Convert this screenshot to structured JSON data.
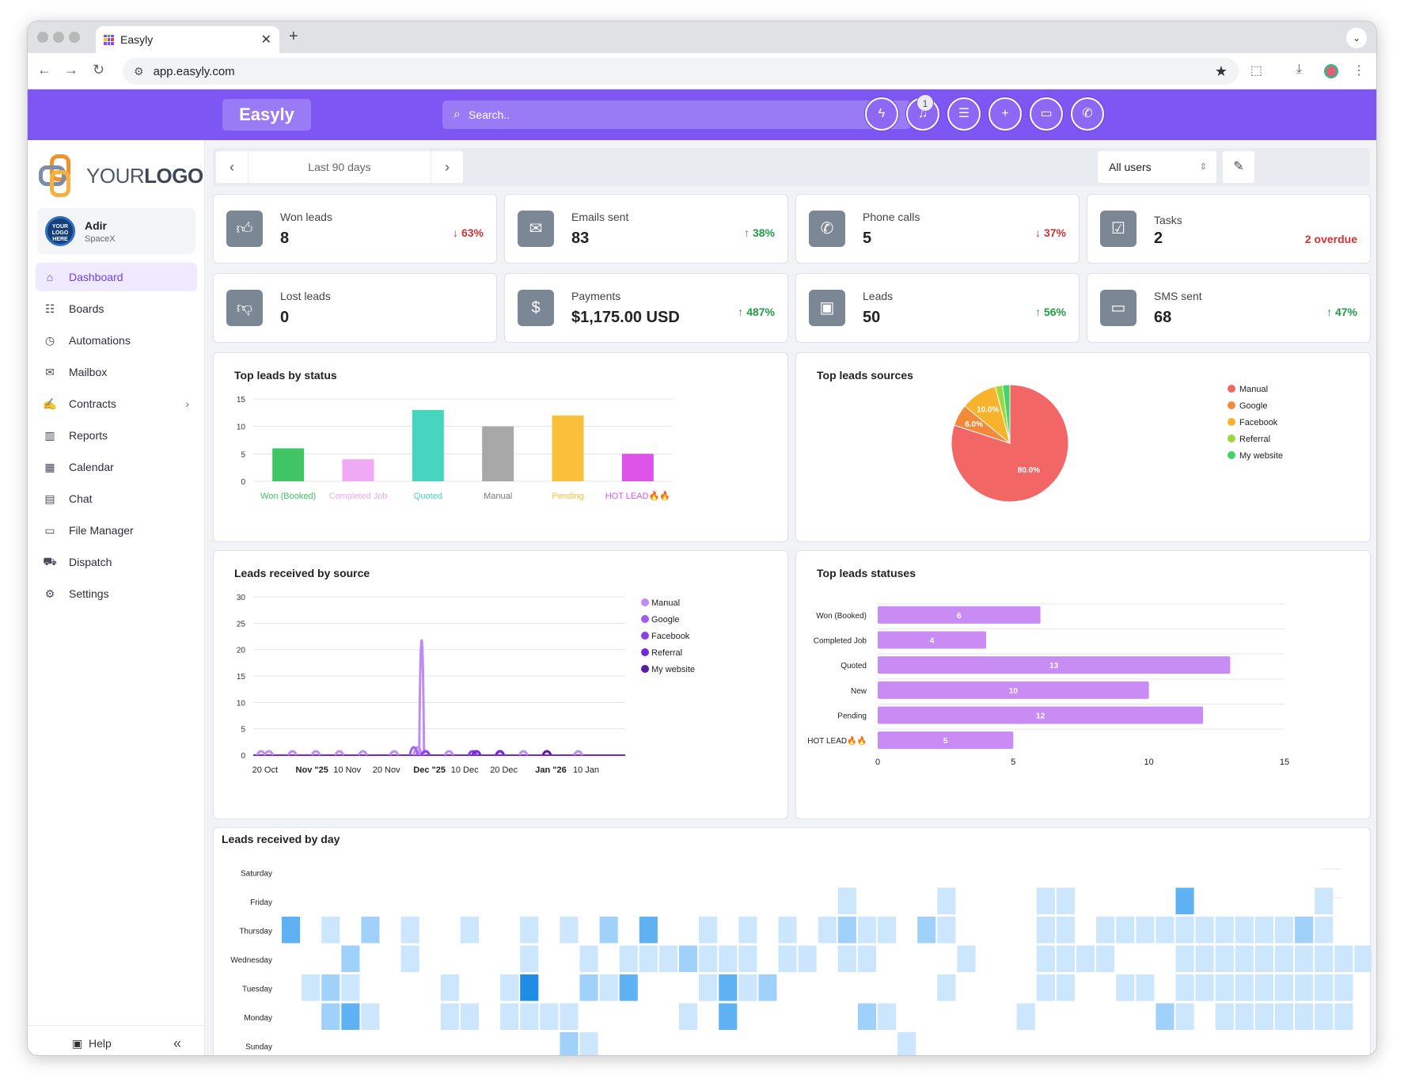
{
  "browser": {
    "tab_title": "Easyly",
    "url": "app.easyly.com"
  },
  "header": {
    "brand": "Easyly",
    "search_placeholder": "Search..",
    "notification_count": "1",
    "buttons": [
      "lightning-icon",
      "bell-icon",
      "list-icon",
      "plus-icon",
      "chat-icon",
      "phone-icon"
    ]
  },
  "sidebar": {
    "logo_text_light": "YOUR",
    "logo_text_bold": "LOGO",
    "user": {
      "name": "Adir",
      "org": "SpaceX",
      "avatar_text": "YOUR LOGO HERE"
    },
    "items": [
      {
        "label": "Dashboard",
        "icon": "home-icon",
        "active": true
      },
      {
        "label": "Boards",
        "icon": "boards-icon"
      },
      {
        "label": "Automations",
        "icon": "clock-icon"
      },
      {
        "label": "Mailbox",
        "icon": "mail-icon"
      },
      {
        "label": "Contracts",
        "icon": "signature-icon",
        "has_arrow": true
      },
      {
        "label": "Reports",
        "icon": "chart-icon"
      },
      {
        "label": "Calendar",
        "icon": "calendar-icon"
      },
      {
        "label": "Chat",
        "icon": "chat-icon"
      },
      {
        "label": "File Manager",
        "icon": "folder-icon"
      },
      {
        "label": "Dispatch",
        "icon": "truck-icon"
      },
      {
        "label": "Settings",
        "icon": "gear-icon"
      }
    ],
    "help": "Help"
  },
  "toolbar": {
    "range_label": "Last 90 days",
    "users_select": "All users"
  },
  "kpis": [
    {
      "label": "Won leads",
      "value": "8",
      "delta": "63%",
      "dir": "down",
      "icon": "thumbs-up-icon"
    },
    {
      "label": "Emails sent",
      "value": "83",
      "delta": "38%",
      "dir": "up",
      "icon": "envelope-icon"
    },
    {
      "label": "Phone calls",
      "value": "5",
      "delta": "37%",
      "dir": "down",
      "icon": "phone-icon"
    },
    {
      "label": "Tasks",
      "value": "2",
      "delta": "2 overdue",
      "dir": "overdue",
      "icon": "clipboard-icon"
    },
    {
      "label": "Lost leads",
      "value": "0",
      "delta": "",
      "dir": "none",
      "icon": "thumbs-down-icon"
    },
    {
      "label": "Payments",
      "value": "$1,175.00 USD",
      "delta": "487%",
      "dir": "up",
      "icon": "dollar-icon"
    },
    {
      "label": "Leads",
      "value": "50",
      "delta": "56%",
      "dir": "up",
      "icon": "contact-card-icon"
    },
    {
      "label": "SMS sent",
      "value": "68",
      "delta": "47%",
      "dir": "up",
      "icon": "sms-icon"
    }
  ],
  "chart_data": [
    {
      "type": "bar",
      "title": "Top leads by status",
      "categories": [
        "Won (Booked)",
        "Completed Job",
        "Quoted",
        "Manual",
        "Pending",
        "HOT LEAD🔥🔥"
      ],
      "values": [
        6,
        4,
        13,
        10,
        12,
        5
      ],
      "colors": [
        "#41c463",
        "#f0aaf3",
        "#48d5bf",
        "#a8a8a8",
        "#fbbf3a",
        "#dd53ea"
      ],
      "yticks": [
        0,
        5,
        10,
        15
      ],
      "ylim": [
        0,
        15
      ],
      "grid": true
    },
    {
      "type": "pie",
      "title": "Top leads sources",
      "labels": [
        "Manual",
        "Google",
        "Facebook",
        "Referral",
        "My website"
      ],
      "values": [
        80.0,
        6.0,
        10.0,
        2.0,
        2.0
      ],
      "slice_labels": [
        "80.0%",
        "6.0%",
        "10.0%",
        "",
        ""
      ],
      "colors": [
        "#f36666",
        "#f5893a",
        "#f7b32b",
        "#9ad93c",
        "#42d46a"
      ],
      "legend": "right"
    },
    {
      "type": "line",
      "title": "Leads received by source",
      "x_ticks": [
        "20 Oct",
        "Nov \"25",
        "10 Nov",
        "20 Nov",
        "Dec \"25",
        "10 Dec",
        "20 Dec",
        "Jan \"26",
        "10 Jan"
      ],
      "x_ticks_bold": [
        false,
        true,
        false,
        false,
        true,
        false,
        false,
        true,
        false
      ],
      "x_range": [
        "2025-10-17",
        "2026-01-20"
      ],
      "yticks": [
        0,
        5,
        10,
        15,
        20,
        25,
        30
      ],
      "ylim": [
        0,
        30
      ],
      "grid": true,
      "legend": "right",
      "series": [
        {
          "name": "Manual",
          "color": "#c08bf3",
          "x": [
            "2025-10-19",
            "2025-10-21",
            "2025-10-27",
            "2025-11-02",
            "2025-11-08",
            "2025-11-14",
            "2025-11-22",
            "2025-11-28",
            "2025-11-29",
            "2025-11-30",
            "2025-12-06",
            "2025-12-13",
            "2025-12-19",
            "2025-12-25",
            "2025-12-31",
            "2026-01-08"
          ],
          "y": [
            1,
            1,
            1,
            1,
            1,
            1,
            1,
            2,
            29,
            1,
            1,
            1,
            1,
            1,
            1,
            1
          ]
        },
        {
          "name": "Google",
          "color": "#a45cf0",
          "x": [
            "2025-11-27",
            "2025-11-30"
          ],
          "y": [
            2,
            1
          ]
        },
        {
          "name": "Facebook",
          "color": "#8b40e8",
          "x": [
            "2025-11-30",
            "2025-12-12",
            "2025-12-19"
          ],
          "y": [
            1,
            1,
            1
          ]
        },
        {
          "name": "Referral",
          "color": "#7228d6",
          "x": [
            "2025-12-13",
            "2025-12-19"
          ],
          "y": [
            1,
            1
          ]
        },
        {
          "name": "My website",
          "color": "#5a1aa8",
          "x": [
            "2025-12-31"
          ],
          "y": [
            1
          ]
        }
      ]
    },
    {
      "type": "bar",
      "orientation": "horizontal",
      "title": "Top leads statuses",
      "categories": [
        "Won (Booked)",
        "Completed Job",
        "Quoted",
        "New",
        "Pending",
        "HOT LEAD🔥🔥"
      ],
      "values": [
        6,
        4,
        13,
        10,
        12,
        5
      ],
      "color": "#c98cf5",
      "xticks": [
        0,
        5,
        10,
        15
      ],
      "xlim": [
        0,
        15
      ],
      "grid": true
    },
    {
      "type": "heatmap",
      "title": "Leads received by day",
      "rows": [
        "Saturday",
        "Friday",
        "Thursday",
        "Wednesday",
        "Tuesday",
        "Monday",
        "Sunday"
      ],
      "columns": 53,
      "cells": {
        "Friday": [
          [
            28,
            1
          ],
          [
            33,
            1
          ],
          [
            38,
            1
          ],
          [
            39,
            1
          ],
          [
            45,
            3
          ],
          [
            52,
            1
          ]
        ],
        "Thursday": [
          [
            0,
            3
          ],
          [
            2,
            1
          ],
          [
            4,
            2
          ],
          [
            6,
            1
          ],
          [
            9,
            1
          ],
          [
            12,
            1
          ],
          [
            14,
            1
          ],
          [
            16,
            2
          ],
          [
            18,
            3
          ],
          [
            21,
            1
          ],
          [
            23,
            1
          ],
          [
            25,
            1
          ],
          [
            27,
            1
          ],
          [
            28,
            2
          ],
          [
            29,
            1
          ],
          [
            30,
            1
          ],
          [
            32,
            2
          ],
          [
            33,
            1
          ],
          [
            38,
            1
          ],
          [
            39,
            1
          ],
          [
            41,
            1
          ],
          [
            42,
            1
          ],
          [
            43,
            1
          ],
          [
            44,
            1
          ],
          [
            45,
            1
          ],
          [
            46,
            1
          ],
          [
            47,
            1
          ],
          [
            48,
            1
          ],
          [
            49,
            1
          ],
          [
            50,
            1
          ],
          [
            51,
            2
          ],
          [
            52,
            1
          ],
          [
            55,
            1
          ]
        ],
        "Wednesday": [
          [
            3,
            2
          ],
          [
            6,
            1
          ],
          [
            12,
            1
          ],
          [
            15,
            1
          ],
          [
            17,
            1
          ],
          [
            18,
            1
          ],
          [
            19,
            1
          ],
          [
            20,
            2
          ],
          [
            21,
            1
          ],
          [
            22,
            1
          ],
          [
            23,
            1
          ],
          [
            25,
            1
          ],
          [
            26,
            1
          ],
          [
            28,
            1
          ],
          [
            29,
            1
          ],
          [
            34,
            1
          ],
          [
            38,
            1
          ],
          [
            39,
            1
          ],
          [
            40,
            1
          ],
          [
            41,
            1
          ],
          [
            45,
            1
          ],
          [
            46,
            1
          ],
          [
            47,
            1
          ],
          [
            48,
            1
          ],
          [
            49,
            1
          ],
          [
            50,
            1
          ],
          [
            51,
            1
          ],
          [
            52,
            1
          ],
          [
            53,
            1
          ],
          [
            54,
            1
          ]
        ],
        "Tuesday": [
          [
            1,
            1
          ],
          [
            2,
            2
          ],
          [
            3,
            1
          ],
          [
            8,
            1
          ],
          [
            11,
            1
          ],
          [
            12,
            4
          ],
          [
            15,
            2
          ],
          [
            16,
            1
          ],
          [
            17,
            3
          ],
          [
            21,
            1
          ],
          [
            22,
            3
          ],
          [
            23,
            1
          ],
          [
            24,
            2
          ],
          [
            33,
            1
          ],
          [
            38,
            1
          ],
          [
            39,
            1
          ],
          [
            42,
            1
          ],
          [
            43,
            1
          ],
          [
            45,
            1
          ],
          [
            46,
            1
          ],
          [
            47,
            1
          ],
          [
            48,
            1
          ],
          [
            49,
            1
          ],
          [
            50,
            1
          ],
          [
            51,
            1
          ],
          [
            52,
            1
          ],
          [
            53,
            1
          ]
        ],
        "Monday": [
          [
            2,
            2
          ],
          [
            3,
            3
          ],
          [
            4,
            1
          ],
          [
            8,
            1
          ],
          [
            9,
            1
          ],
          [
            11,
            1
          ],
          [
            12,
            1
          ],
          [
            13,
            1
          ],
          [
            14,
            1
          ],
          [
            20,
            1
          ],
          [
            22,
            3
          ],
          [
            29,
            2
          ],
          [
            30,
            1
          ],
          [
            37,
            1
          ],
          [
            44,
            2
          ],
          [
            45,
            1
          ],
          [
            47,
            1
          ],
          [
            48,
            1
          ],
          [
            49,
            1
          ],
          [
            50,
            1
          ],
          [
            51,
            1
          ],
          [
            52,
            1
          ],
          [
            53,
            1
          ]
        ],
        "Sunday": [
          [
            14,
            2
          ],
          [
            15,
            1
          ],
          [
            31,
            1
          ]
        ]
      },
      "palette": [
        "#cbe6fd",
        "#9fd1fb",
        "#5eb2f4",
        "#1f8ce8"
      ]
    }
  ]
}
